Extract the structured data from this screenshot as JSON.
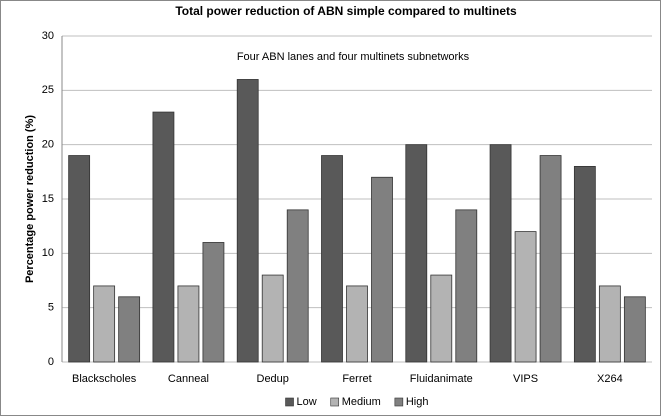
{
  "chart_data": {
    "type": "bar",
    "title": "Total power reduction of ABN simple compared to multinets",
    "annotation": "Four ABN lanes and four multinets subnetworks",
    "ylabel": "Percentage power reduction (%)",
    "categories": [
      "Blackscholes",
      "Canneal",
      "Dedup",
      "Ferret",
      "Fluidanimate",
      "VIPS",
      "X264"
    ],
    "series": [
      {
        "name": "Low",
        "color": "#595959",
        "values": [
          19,
          23,
          26,
          19,
          20,
          20,
          18
        ]
      },
      {
        "name": "Medium",
        "color": "#b3b3b3",
        "values": [
          7,
          7,
          8,
          7,
          8,
          12,
          7
        ]
      },
      {
        "name": "High",
        "color": "#808080",
        "values": [
          6,
          11,
          14,
          17,
          14,
          19,
          6
        ]
      }
    ],
    "ylim": [
      0,
      30
    ],
    "yticks": [
      0,
      5,
      10,
      15,
      20,
      25,
      30
    ],
    "grid": true,
    "legend": "bottom"
  }
}
